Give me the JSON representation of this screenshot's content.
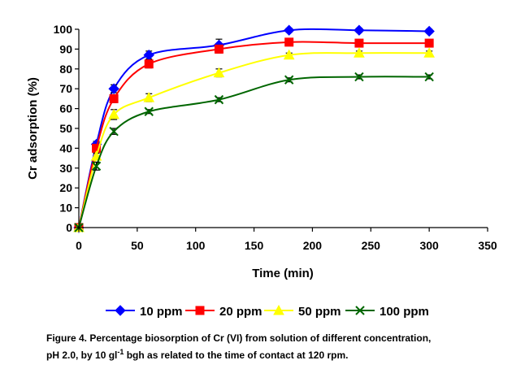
{
  "chart_data": {
    "type": "line",
    "title": "",
    "xlabel": "Time (min)",
    "ylabel": "Cr adsorption (%)",
    "xlim": [
      0,
      350
    ],
    "ylim": [
      0,
      100
    ],
    "x_ticks": [
      "0",
      "50",
      "100",
      "150",
      "200",
      "250",
      "300",
      "350"
    ],
    "y_ticks": [
      "0",
      "10",
      "20",
      "30",
      "40",
      "50",
      "60",
      "70",
      "80",
      "90",
      "100"
    ],
    "grid": false,
    "legend_position": "bottom",
    "x": [
      0,
      15,
      30,
      60,
      120,
      180,
      240,
      300
    ],
    "series": [
      {
        "name": "10 ppm",
        "color": "#0000ff",
        "marker": "diamond",
        "values": [
          0,
          42,
          70,
          87,
          92,
          99.5,
          99.5,
          99
        ],
        "errors": [
          0,
          1.5,
          2,
          2,
          3,
          1,
          1,
          1
        ]
      },
      {
        "name": "20 ppm",
        "color": "#ff0000",
        "marker": "square",
        "values": [
          0,
          40,
          65,
          82.5,
          90,
          93.5,
          93,
          93
        ],
        "errors": [
          0,
          1.5,
          2,
          2,
          2,
          1,
          1,
          1
        ]
      },
      {
        "name": "50 ppm",
        "color": "#ffff00",
        "marker": "triangle",
        "values": [
          0,
          36,
          57,
          65.5,
          78,
          87,
          88,
          88
        ],
        "errors": [
          0,
          1.5,
          2.5,
          2,
          2,
          1,
          1,
          1
        ]
      },
      {
        "name": "100 ppm",
        "color": "#006600",
        "marker": "x",
        "values": [
          0,
          31,
          48.5,
          58.5,
          64.5,
          74.5,
          76,
          76
        ],
        "errors": [
          0,
          2,
          1.5,
          1,
          1,
          1,
          1,
          1
        ]
      }
    ]
  },
  "caption": {
    "line1": "Figure 4. Percentage biosorption of Cr (VI) from solution of different concentration,",
    "line2_before": "pH 2.0, by 10 gl",
    "line2_sup": "-1",
    "line2_after": " bgh as related to the time of contact at 120 rpm."
  }
}
